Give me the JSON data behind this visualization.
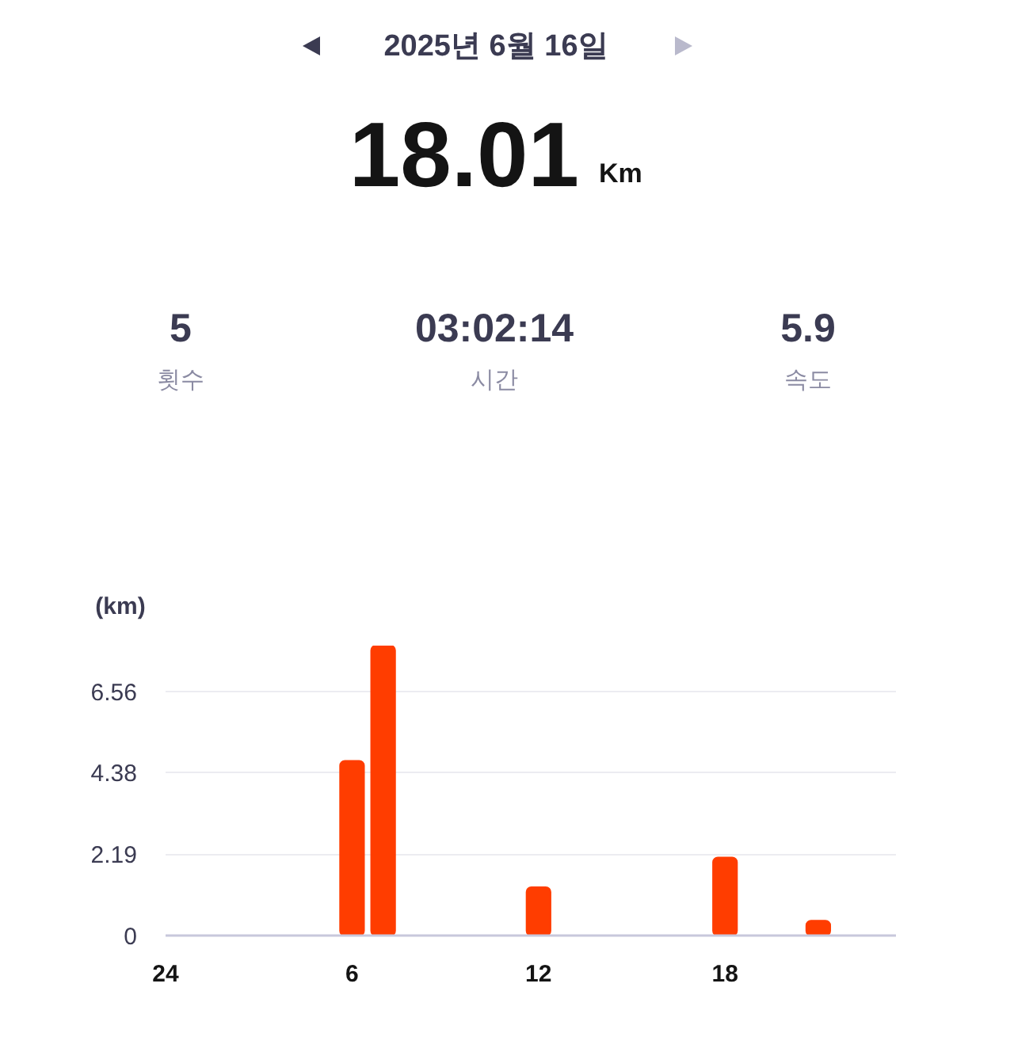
{
  "chart_data": {
    "type": "bar",
    "title": "2025년 6월 16일",
    "subtitle": "18.01",
    "annotations": [
      "Km",
      "5",
      "횟수",
      "03:02:14",
      "시간",
      "5.9",
      "속도"
    ],
    "ylabel": "(km)",
    "categories": [
      "24",
      null,
      null,
      null,
      null,
      null,
      "6",
      null,
      null,
      null,
      null,
      null,
      "12",
      null,
      null,
      null,
      null,
      null,
      "18",
      null,
      null,
      null,
      null,
      null
    ],
    "values": [
      null,
      null,
      null,
      null,
      null,
      null,
      4.7,
      7.8,
      null,
      null,
      null,
      null,
      1.3,
      null,
      null,
      null,
      null,
      null,
      2.1,
      null,
      null,
      0.4,
      null,
      null
    ],
    "color": "#ff3d00",
    "ylim": [
      0,
      7.8
    ],
    "yticks": [
      0,
      2.19,
      4.38,
      6.56
    ],
    "grid": "y"
  }
}
